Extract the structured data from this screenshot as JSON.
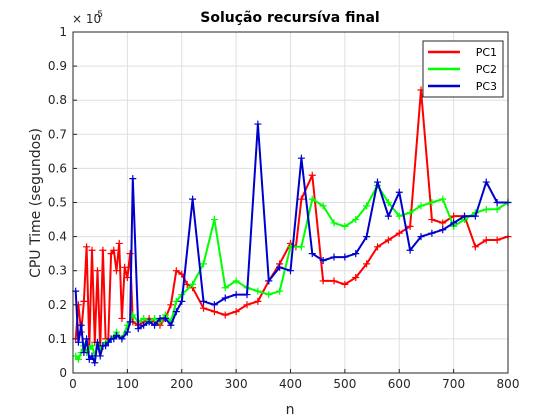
{
  "chart_data": {
    "type": "line",
    "title": "Solução recursíva final",
    "xlabel": "n",
    "ylabel": "CPU Time (segundos)",
    "y_multiplier": "10^-5",
    "y_multiplier_base": "× 10",
    "y_multiplier_exp": "-5",
    "xlim": [
      0,
      800
    ],
    "ylim": [
      0,
      1
    ],
    "x_ticks": [
      "0",
      "100",
      "200",
      "300",
      "400",
      "500",
      "600",
      "700",
      "800"
    ],
    "y_ticks": [
      "0",
      "0.1",
      "0.2",
      "0.3",
      "0.4",
      "0.5",
      "0.6",
      "0.7",
      "0.8",
      "0.9",
      "1"
    ],
    "grid": true,
    "legend_position": "top-right",
    "series": [
      {
        "name": "PC1",
        "color": "#ff0000",
        "x": [
          5,
          10,
          15,
          20,
          25,
          30,
          35,
          40,
          45,
          50,
          55,
          60,
          65,
          70,
          75,
          80,
          85,
          90,
          95,
          100,
          105,
          110,
          120,
          130,
          140,
          150,
          160,
          170,
          180,
          190,
          200,
          210,
          220,
          240,
          260,
          280,
          300,
          320,
          340,
          360,
          380,
          400,
          410,
          420,
          440,
          460,
          480,
          500,
          520,
          540,
          560,
          580,
          600,
          620,
          640,
          660,
          680,
          700,
          720,
          740,
          760,
          780,
          800
        ],
        "y": [
          0.1,
          0.2,
          0.12,
          0.21,
          0.37,
          0.08,
          0.36,
          0.09,
          0.3,
          0.07,
          0.36,
          0.1,
          0.1,
          0.35,
          0.36,
          0.3,
          0.38,
          0.16,
          0.31,
          0.28,
          0.35,
          0.15,
          0.14,
          0.15,
          0.16,
          0.15,
          0.14,
          0.16,
          0.2,
          0.3,
          0.29,
          0.26,
          0.25,
          0.19,
          0.18,
          0.17,
          0.18,
          0.2,
          0.21,
          0.27,
          0.32,
          0.38,
          0.37,
          0.51,
          0.58,
          0.27,
          0.27,
          0.26,
          0.28,
          0.32,
          0.37,
          0.39,
          0.41,
          0.43,
          0.83,
          0.45,
          0.44,
          0.46,
          0.46,
          0.37,
          0.39,
          0.39,
          0.4
        ]
      },
      {
        "name": "PC2",
        "color": "#00ff00",
        "x": [
          5,
          10,
          15,
          20,
          25,
          30,
          35,
          40,
          45,
          50,
          55,
          60,
          70,
          80,
          90,
          100,
          110,
          120,
          130,
          140,
          150,
          160,
          170,
          180,
          190,
          200,
          220,
          240,
          260,
          280,
          300,
          320,
          340,
          360,
          380,
          400,
          420,
          440,
          460,
          480,
          500,
          520,
          540,
          560,
          580,
          600,
          620,
          640,
          660,
          680,
          700,
          720,
          740,
          760,
          780,
          800
        ],
        "y": [
          0.05,
          0.04,
          0.06,
          0.08,
          0.06,
          0.07,
          0.08,
          0.05,
          0.09,
          0.07,
          0.08,
          0.09,
          0.1,
          0.12,
          0.1,
          0.14,
          0.17,
          0.15,
          0.16,
          0.15,
          0.16,
          0.15,
          0.17,
          0.15,
          0.21,
          0.23,
          0.26,
          0.32,
          0.45,
          0.25,
          0.27,
          0.25,
          0.24,
          0.23,
          0.24,
          0.37,
          0.37,
          0.51,
          0.49,
          0.44,
          0.43,
          0.45,
          0.49,
          0.55,
          0.5,
          0.46,
          0.47,
          0.49,
          0.5,
          0.51,
          0.43,
          0.45,
          0.47,
          0.48,
          0.48,
          0.5
        ]
      },
      {
        "name": "PC3",
        "color": "#0000cc",
        "x": [
          5,
          10,
          15,
          20,
          25,
          30,
          35,
          40,
          45,
          50,
          55,
          60,
          65,
          70,
          75,
          80,
          90,
          100,
          105,
          110,
          120,
          130,
          140,
          150,
          160,
          170,
          180,
          190,
          200,
          220,
          240,
          260,
          280,
          300,
          320,
          340,
          360,
          380,
          400,
          420,
          440,
          460,
          480,
          500,
          520,
          540,
          560,
          580,
          600,
          620,
          640,
          660,
          680,
          700,
          720,
          740,
          760,
          780,
          800
        ],
        "y": [
          0.24,
          0.09,
          0.14,
          0.06,
          0.1,
          0.04,
          0.05,
          0.03,
          0.09,
          0.05,
          0.08,
          0.08,
          0.09,
          0.1,
          0.1,
          0.11,
          0.1,
          0.12,
          0.15,
          0.57,
          0.13,
          0.14,
          0.15,
          0.14,
          0.16,
          0.16,
          0.14,
          0.18,
          0.21,
          0.51,
          0.21,
          0.2,
          0.22,
          0.23,
          0.23,
          0.73,
          0.27,
          0.31,
          0.3,
          0.63,
          0.35,
          0.33,
          0.34,
          0.34,
          0.35,
          0.4,
          0.56,
          0.46,
          0.53,
          0.36,
          0.4,
          0.41,
          0.42,
          0.44,
          0.46,
          0.46,
          0.56,
          0.5,
          0.5
        ]
      }
    ]
  }
}
